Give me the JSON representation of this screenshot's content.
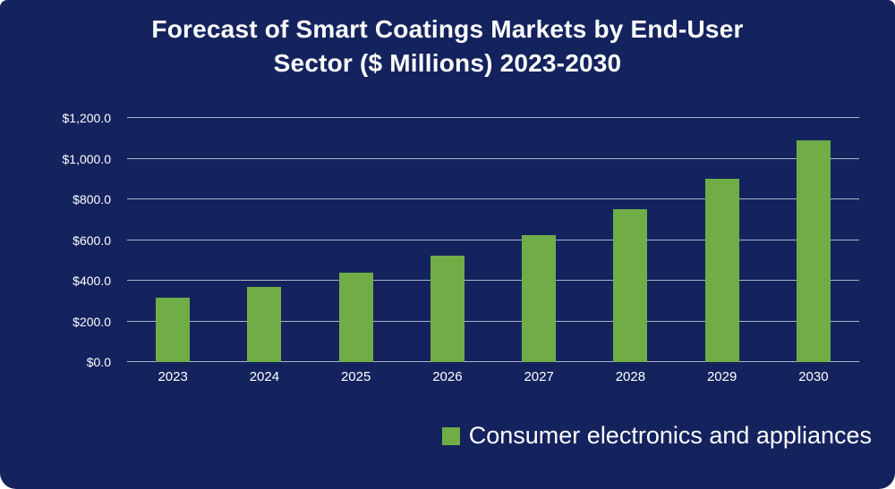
{
  "title": {
    "line1": "Forecast of Smart Coatings Markets by End-User",
    "line2": "Sector ($ Millions) 2023-2030"
  },
  "chart_data": {
    "type": "bar",
    "title": "Forecast of Smart Coatings Markets by End-User Sector ($ Millions) 2023-2030",
    "categories": [
      "2023",
      "2024",
      "2025",
      "2026",
      "2027",
      "2028",
      "2029",
      "2030"
    ],
    "values": [
      315,
      370,
      440,
      525,
      625,
      750,
      900,
      1090
    ],
    "xlabel": "",
    "ylabel": "",
    "ylim": [
      0,
      1200
    ],
    "ytick_step": 200,
    "ytick_labels": [
      "$0.0",
      "$200.0",
      "$400.0",
      "$600.0",
      "$800.0",
      "$1,000.0",
      "$1,200.0"
    ],
    "grid": true,
    "legend_position": "bottom-right",
    "legend": [
      {
        "label": "Consumer electronics and appliances",
        "color": "#70AD47"
      }
    ],
    "bar_color": "#70AD47"
  },
  "colors": {
    "background": "#14235E",
    "bar": "#70AD47",
    "text": "#FFFFFF",
    "gridline": "#C9CED9"
  }
}
